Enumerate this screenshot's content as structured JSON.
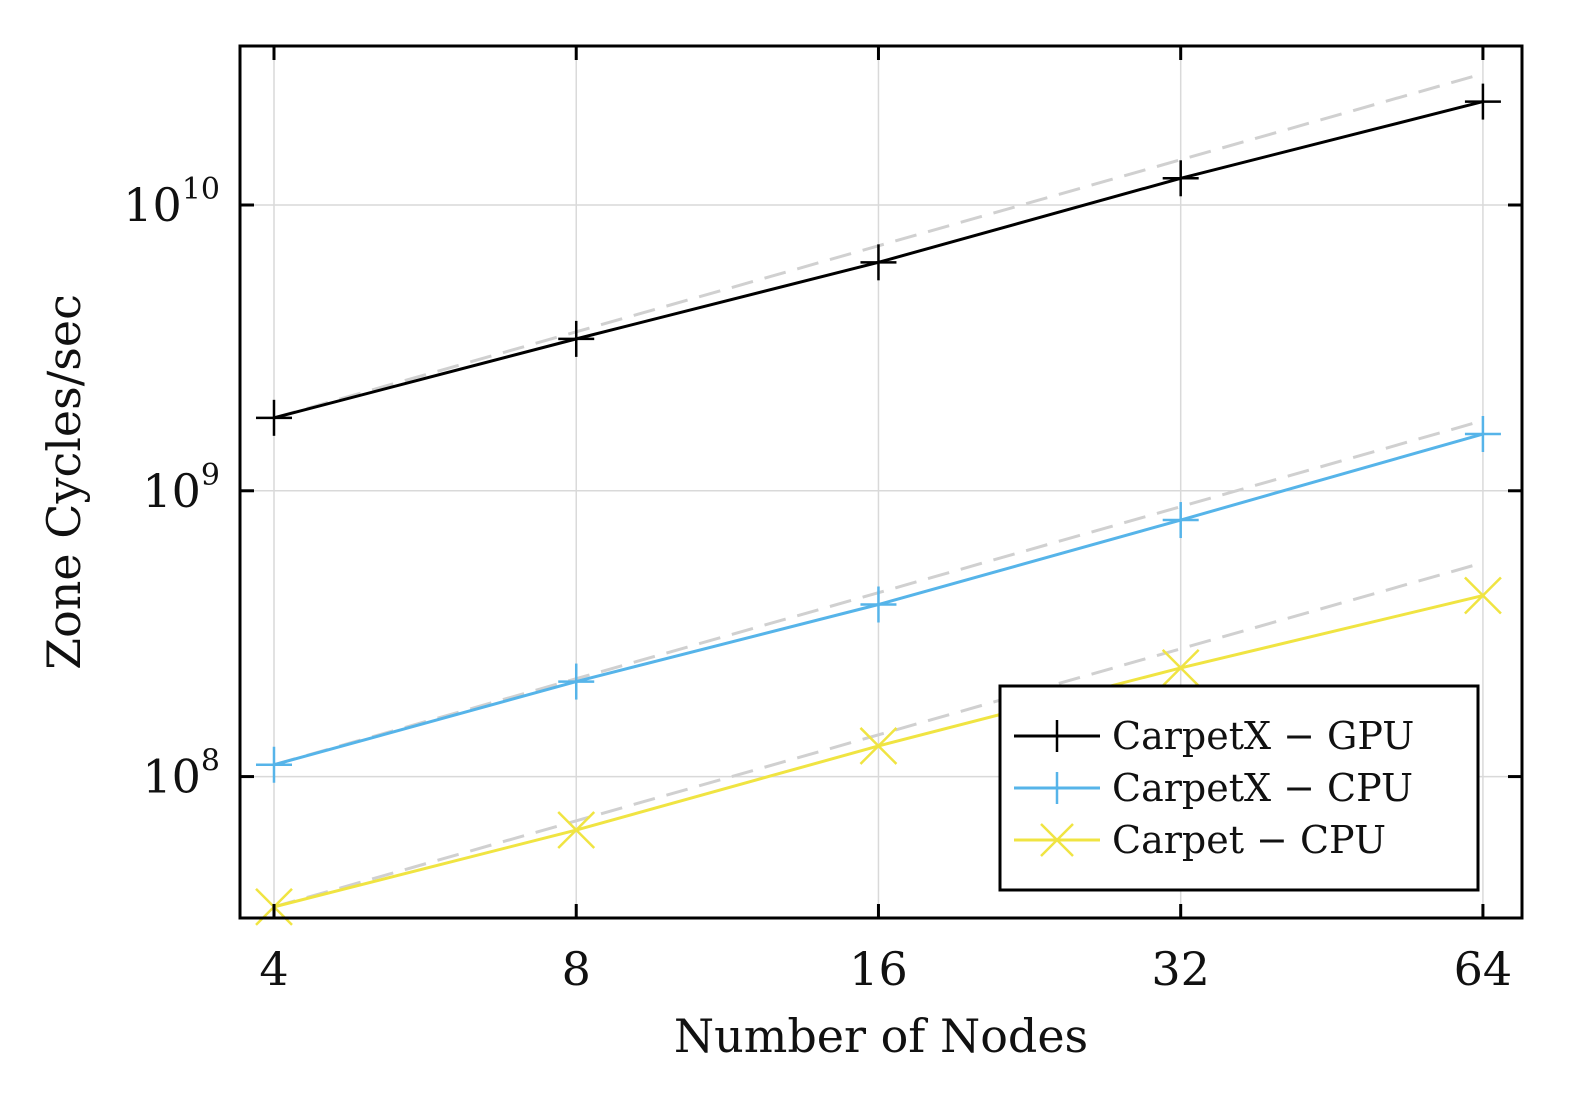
{
  "chart_data": {
    "type": "line",
    "xlabel": "Number of Nodes",
    "ylabel": "Zone Cycles/sec",
    "x_scale": "log2",
    "y_scale": "log10",
    "x": [
      4,
      8,
      16,
      32,
      64
    ],
    "x_tick_labels": [
      "4",
      "8",
      "16",
      "32",
      "64"
    ],
    "xlim": [
      3.7,
      70
    ],
    "ylim": [
      32000000,
      36000000000
    ],
    "y_ticks": [
      {
        "value": 100000000,
        "base": "10",
        "exp": "8"
      },
      {
        "value": 1000000000,
        "base": "10",
        "exp": "9"
      },
      {
        "value": 10000000000,
        "base": "10",
        "exp": "10"
      }
    ],
    "grid": true,
    "legend_position": "bottom-right",
    "series": [
      {
        "name": "CarpetX − GPU",
        "values": [
          1800000000,
          3400000000,
          6300000000,
          12400000000,
          23000000000
        ],
        "color": "#000000",
        "marker": "plus"
      },
      {
        "name": "CarpetX − CPU",
        "values": [
          110000000,
          215000000,
          400000000,
          790000000,
          1580000000
        ],
        "color": "#56b4e9",
        "marker": "plus"
      },
      {
        "name": "Carpet − CPU",
        "values": [
          35000000,
          65000000,
          128000000,
          240000000,
          430000000
        ],
        "color": "#f0e442",
        "marker": "cross"
      }
    ],
    "ideal_color": "#d0d0d0"
  }
}
